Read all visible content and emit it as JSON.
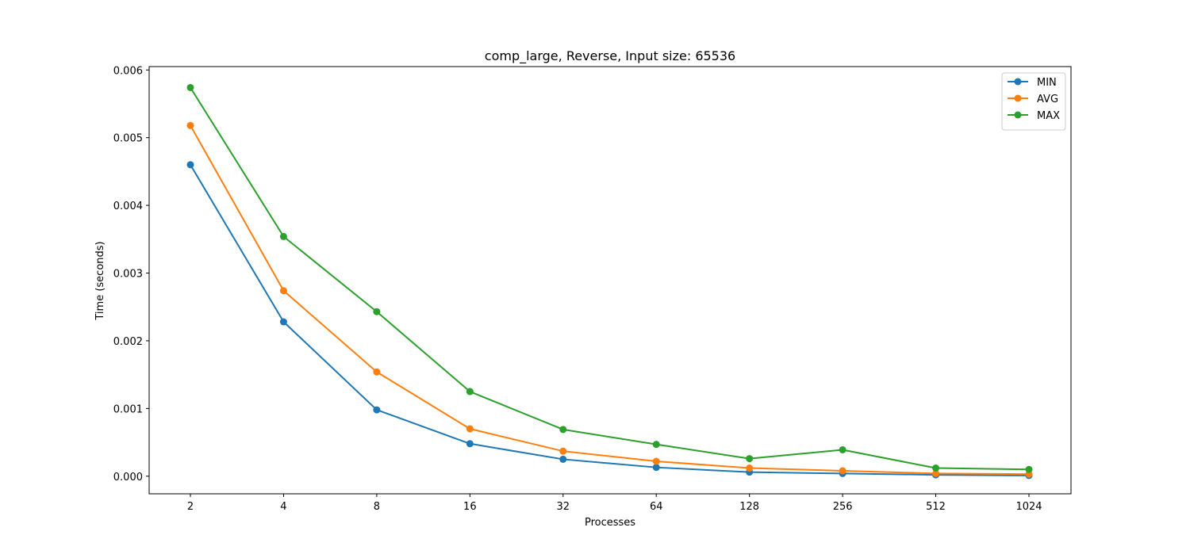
{
  "chart_data": {
    "type": "line",
    "title": "comp_large, Reverse, Input size: 65536",
    "xlabel": "Processes",
    "ylabel": "Time (seconds)",
    "categories": [
      "2",
      "4",
      "8",
      "16",
      "32",
      "64",
      "128",
      "256",
      "512",
      "1024"
    ],
    "ylim": [
      -0.00026,
      0.00605
    ],
    "yticks": [
      "0.000",
      "0.001",
      "0.002",
      "0.003",
      "0.004",
      "0.005",
      "0.006"
    ],
    "ytick_values": [
      0,
      0.001,
      0.002,
      0.003,
      0.004,
      0.005,
      0.006
    ],
    "grid": false,
    "legend_position": "top-right",
    "series": [
      {
        "name": "MIN",
        "color": "#1f77b4",
        "values": [
          0.0046,
          0.00228,
          0.00098,
          0.00048,
          0.00025,
          0.00013,
          6e-05,
          4e-05,
          2e-05,
          1e-05
        ]
      },
      {
        "name": "AVG",
        "color": "#ff7f0e",
        "values": [
          0.00518,
          0.00274,
          0.00154,
          0.0007,
          0.00037,
          0.00022,
          0.00012,
          8e-05,
          4e-05,
          3e-05
        ]
      },
      {
        "name": "MAX",
        "color": "#2ca02c",
        "values": [
          0.00574,
          0.00354,
          0.00243,
          0.00125,
          0.00069,
          0.00047,
          0.00026,
          0.00039,
          0.00012,
          0.0001
        ]
      }
    ]
  }
}
